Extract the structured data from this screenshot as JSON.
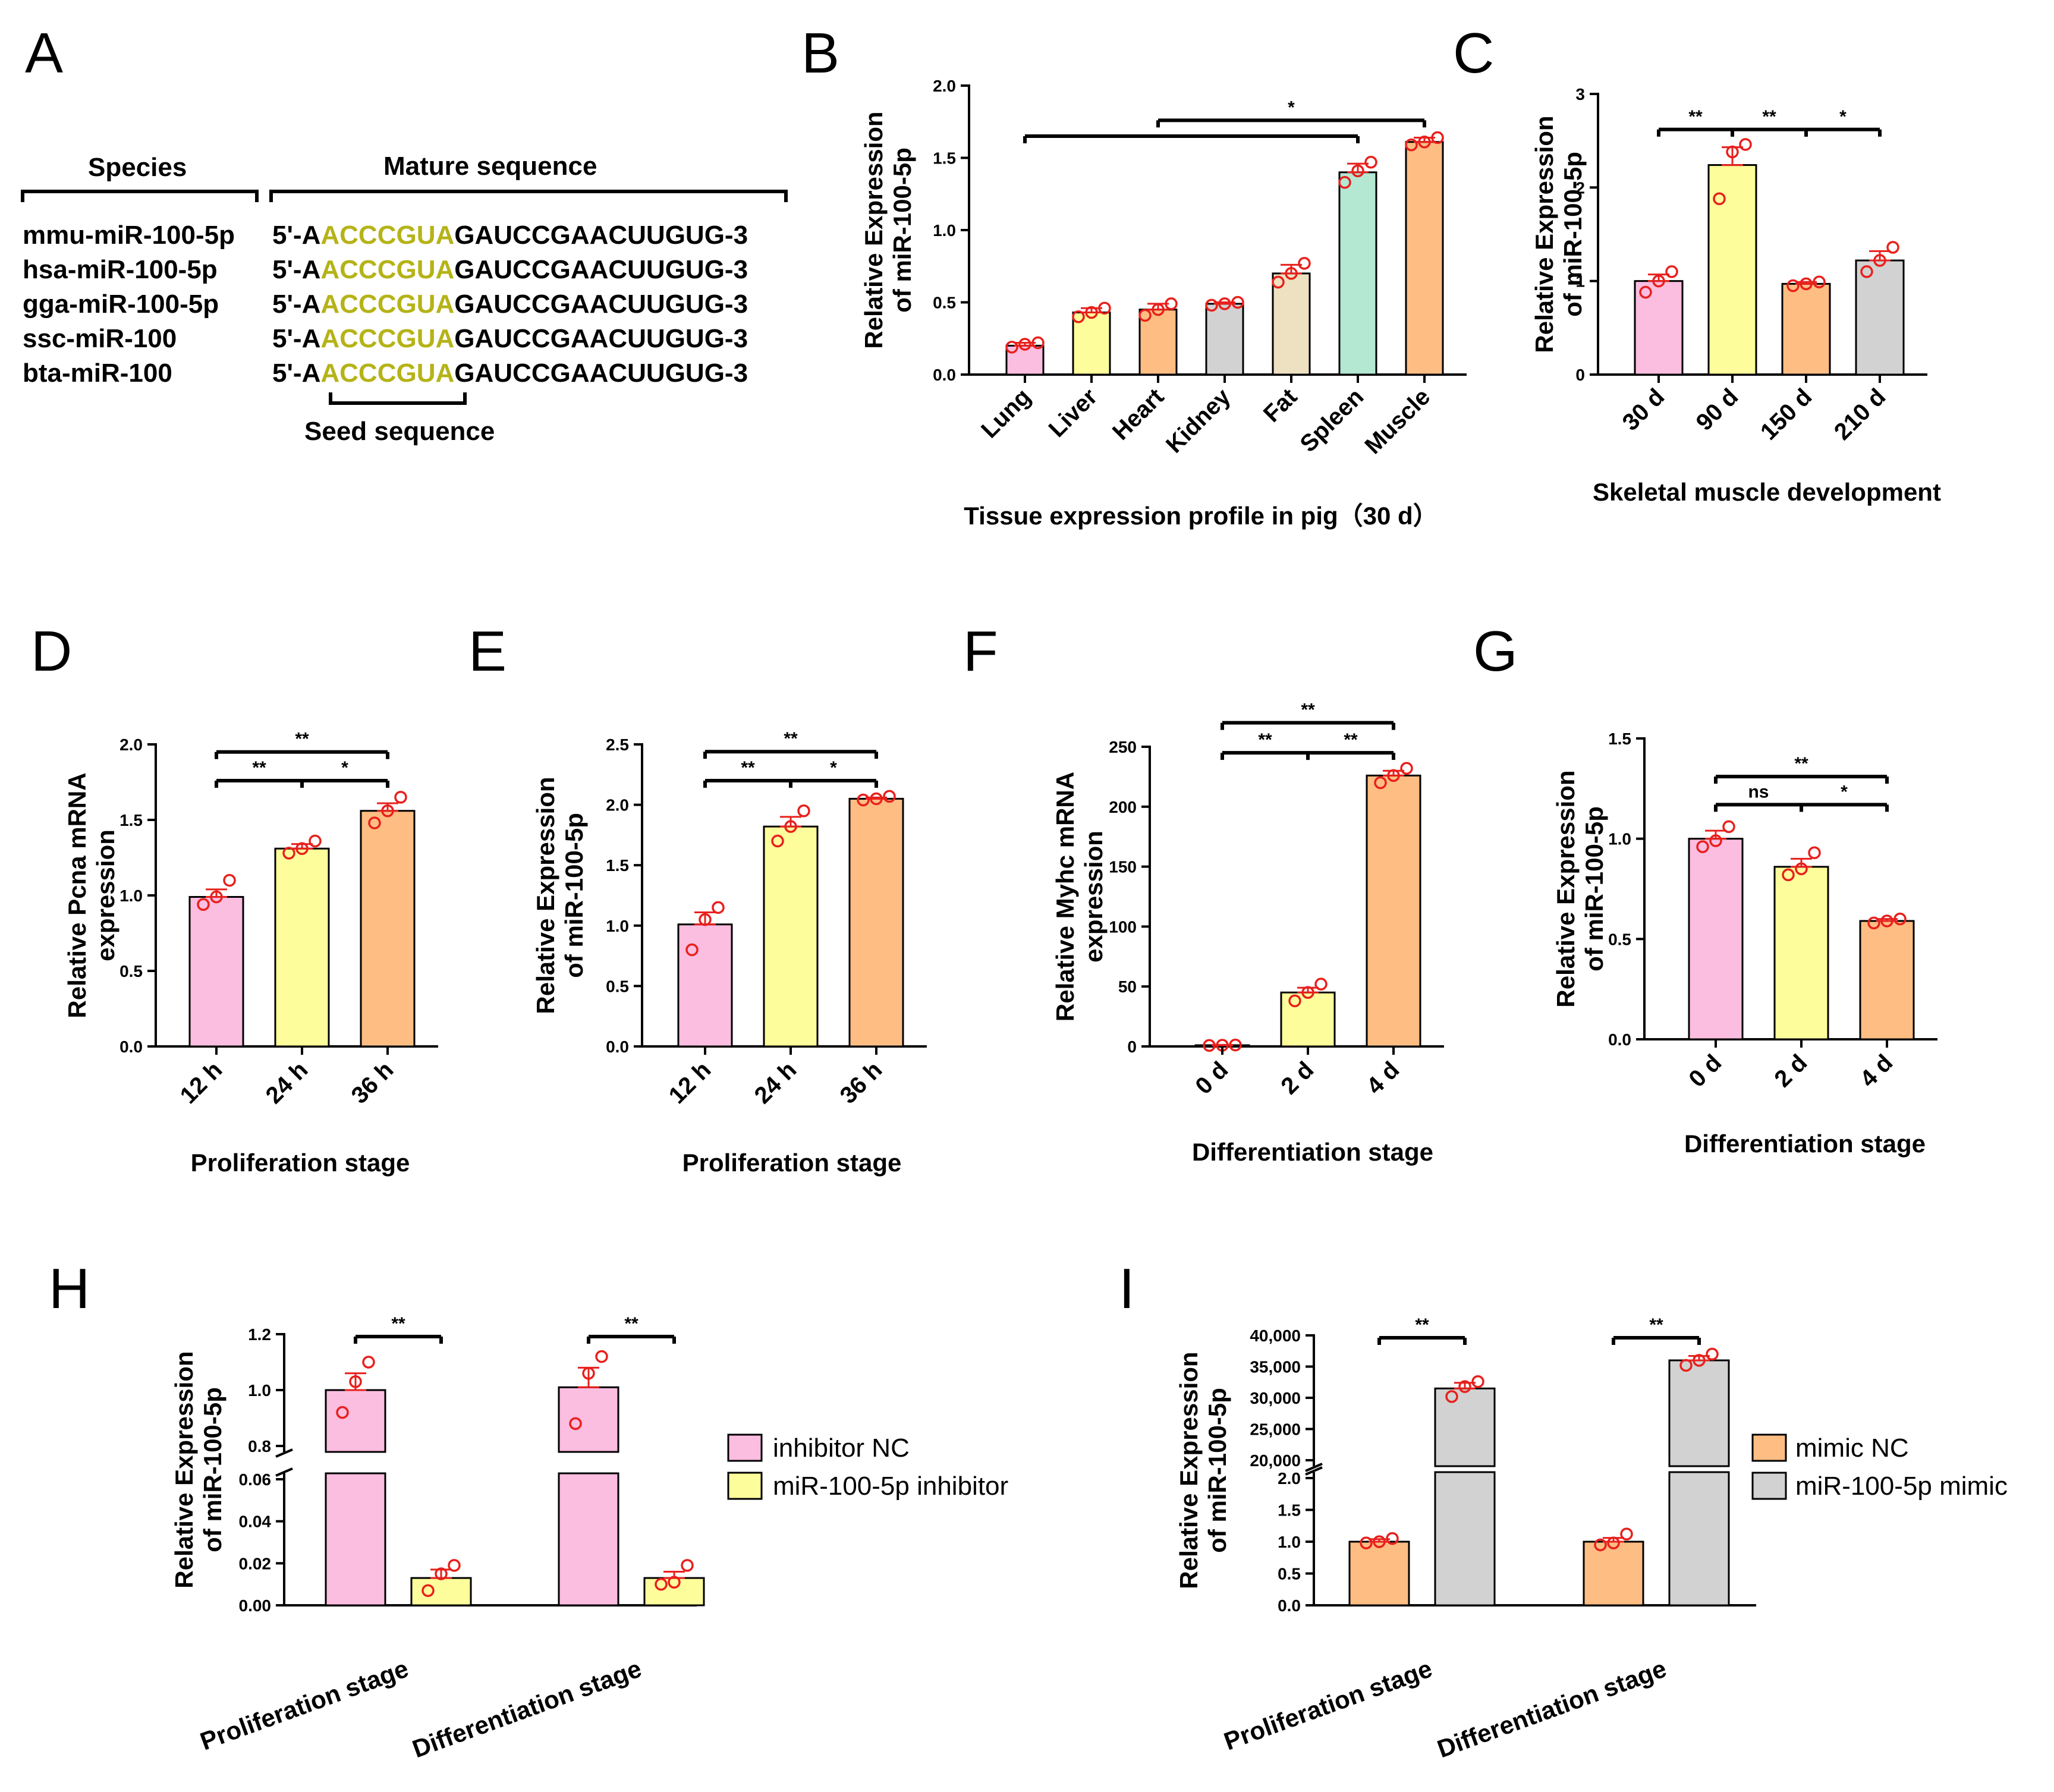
{
  "figure": {
    "background": "#ffffff"
  },
  "colors": {
    "pink": "#fbbde0",
    "yellow": "#fefd9b",
    "orange": "#fdbd83",
    "gray": "#d2d2d2",
    "tan": "#ede1c1",
    "mint": "#b4e8d3",
    "dot": "#e8201c",
    "errbar": "#e8201c",
    "seed": "#b5b317"
  },
  "panel_a": {
    "letter": "A",
    "species_header": "Species",
    "sequence_header": "Mature sequence",
    "rows": [
      {
        "species": "mmu-miR-100-5p",
        "prefix": "5'-A",
        "seed": "ACCCGUA",
        "suffix": "GAUCCGAACUUGUG-3"
      },
      {
        "species": "hsa-miR-100-5p",
        "prefix": "5'-A",
        "seed": "ACCCGUA",
        "suffix": "GAUCCGAACUUGUG-3"
      },
      {
        "species": "gga-miR-100-5p",
        "prefix": "5'-A",
        "seed": "ACCCGUA",
        "suffix": "GAUCCGAACUUGUG-3"
      },
      {
        "species": "ssc-miR-100",
        "prefix": "5'-A",
        "seed": "ACCCGUA",
        "suffix": "GAUCCGAACUUGUG-3"
      },
      {
        "species": "bta-miR-100",
        "prefix": "5'-A",
        "seed": "ACCCGUA",
        "suffix": "GAUCCGAACUUGUG-3"
      }
    ],
    "seed_label": "Seed sequence"
  },
  "legend_h": [
    "inhibitor NC",
    "miR-100-5p inhibitor"
  ],
  "legend_i": [
    "mimic NC",
    "miR-100-5p mimic"
  ],
  "chart_data": [
    {
      "id": "B",
      "type": "bar",
      "letter": "B",
      "ylabel": [
        "Relative Expression",
        "of miR-100-5p"
      ],
      "xlabel": "Tissue expression profile in pig（30 d）",
      "ylim": [
        0,
        2.0
      ],
      "yticks": [
        "0.0",
        "0.5",
        "1.0",
        "1.5",
        "2.0"
      ],
      "ytick_values": [
        0,
        0.5,
        1.0,
        1.5,
        2.0
      ],
      "categories": [
        "Lung",
        "Liver",
        "Heart",
        "Kidney",
        "Fat",
        "Spleen",
        "Muscle"
      ],
      "values": [
        0.2,
        0.43,
        0.45,
        0.49,
        0.7,
        1.4,
        1.61
      ],
      "errors": [
        0.02,
        0.03,
        0.04,
        0.01,
        0.06,
        0.06,
        0.03
      ],
      "points": [
        [
          0.19,
          0.21,
          0.22
        ],
        [
          0.4,
          0.43,
          0.46
        ],
        [
          0.41,
          0.45,
          0.49
        ],
        [
          0.48,
          0.49,
          0.5
        ],
        [
          0.64,
          0.7,
          0.77
        ],
        [
          1.33,
          1.41,
          1.47
        ],
        [
          1.59,
          1.61,
          1.64
        ]
      ],
      "bar_colors": [
        "pink",
        "yellow",
        "orange",
        "gray",
        "tan",
        "mint",
        "orange"
      ],
      "rotate_labels": true,
      "significance": [
        {
          "from": 0,
          "to": 5,
          "label": "",
          "y": 1.65
        },
        {
          "from": 2,
          "to": 6,
          "label": "*",
          "y": 1.76
        }
      ]
    },
    {
      "id": "C",
      "type": "bar",
      "letter": "C",
      "ylabel": [
        "Relative Expression",
        "of miR-100-5p"
      ],
      "xlabel": "Skeletal muscle development",
      "ylim": [
        0,
        3
      ],
      "yticks": [
        "0",
        "1",
        "2",
        "3"
      ],
      "ytick_values": [
        0,
        1,
        2,
        3
      ],
      "categories": [
        "30 d",
        "90 d",
        "150 d",
        "210 d"
      ],
      "values": [
        1.0,
        2.24,
        0.97,
        1.22
      ],
      "errors": [
        0.07,
        0.19,
        0.02,
        0.1
      ],
      "points": [
        [
          0.88,
          1.0,
          1.1
        ],
        [
          1.88,
          2.38,
          2.46
        ],
        [
          0.95,
          0.97,
          0.99
        ],
        [
          1.1,
          1.22,
          1.36
        ]
      ],
      "bar_colors": [
        "pink",
        "yellow",
        "orange",
        "gray"
      ],
      "rotate_labels": true,
      "significance": [
        {
          "from": 0,
          "to": 1,
          "label": "**",
          "y": 2.62
        },
        {
          "from": 1,
          "to": 2,
          "label": "**",
          "y": 2.62
        },
        {
          "from": 2,
          "to": 3,
          "label": "*",
          "y": 2.62
        }
      ]
    },
    {
      "id": "D",
      "type": "bar",
      "letter": "D",
      "ylabel": [
        "Relative Pcna mRNA",
        "expression"
      ],
      "xlabel": "Proliferation stage",
      "ylim": [
        0,
        2.0
      ],
      "yticks": [
        "0.0",
        "0.5",
        "1.0",
        "1.5",
        "2.0"
      ],
      "ytick_values": [
        0,
        0.5,
        1.0,
        1.5,
        2.0
      ],
      "categories": [
        "12 h",
        "24 h",
        "36 h"
      ],
      "values": [
        0.99,
        1.31,
        1.56
      ],
      "errors": [
        0.05,
        0.03,
        0.05
      ],
      "points": [
        [
          0.94,
          0.99,
          1.1
        ],
        [
          1.28,
          1.31,
          1.36
        ],
        [
          1.48,
          1.56,
          1.65
        ]
      ],
      "bar_colors": [
        "pink",
        "yellow",
        "orange"
      ],
      "rotate_labels": true,
      "significance": [
        {
          "from": 0,
          "to": 1,
          "label": "**",
          "y": 1.76
        },
        {
          "from": 1,
          "to": 2,
          "label": "*",
          "y": 1.76
        },
        {
          "from": 0,
          "to": 2,
          "label": "**",
          "y": 1.95
        }
      ]
    },
    {
      "id": "E",
      "type": "bar",
      "letter": "E",
      "ylabel": [
        "Relative Expression",
        "of miR-100-5p"
      ],
      "xlabel": "Proliferation stage",
      "ylim": [
        0,
        2.5
      ],
      "yticks": [
        "0.0",
        "0.5",
        "1.0",
        "1.5",
        "2.0",
        "2.5"
      ],
      "ytick_values": [
        0,
        0.5,
        1.0,
        1.5,
        2.0,
        2.5
      ],
      "categories": [
        "12 h",
        "24 h",
        "36 h"
      ],
      "values": [
        1.01,
        1.82,
        2.05
      ],
      "errors": [
        0.1,
        0.08,
        0.01
      ],
      "points": [
        [
          0.8,
          1.05,
          1.15
        ],
        [
          1.7,
          1.82,
          1.95
        ],
        [
          2.04,
          2.05,
          2.07
        ]
      ],
      "bar_colors": [
        "pink",
        "yellow",
        "orange"
      ],
      "rotate_labels": true,
      "significance": [
        {
          "from": 0,
          "to": 1,
          "label": "**",
          "y": 2.2
        },
        {
          "from": 1,
          "to": 2,
          "label": "*",
          "y": 2.2
        },
        {
          "from": 0,
          "to": 2,
          "label": "**",
          "y": 2.44
        }
      ]
    },
    {
      "id": "F",
      "type": "bar",
      "letter": "F",
      "ylabel": [
        "Relative Myhc mRNA",
        "expression"
      ],
      "xlabel": "Differentiation stage",
      "ylim": [
        0,
        250
      ],
      "yticks": [
        "0",
        "50",
        "100",
        "150",
        "200",
        "250"
      ],
      "ytick_values": [
        0,
        50,
        100,
        150,
        200,
        250
      ],
      "categories": [
        "0 d",
        "2 d",
        "4 d"
      ],
      "values": [
        1,
        45,
        226
      ],
      "errors": [
        0.3,
        4,
        4
      ],
      "points": [
        [
          0.8,
          1.0,
          1.2
        ],
        [
          38,
          45,
          52
        ],
        [
          220,
          226,
          232
        ]
      ],
      "bar_colors": [
        "pink",
        "yellow",
        "orange"
      ],
      "rotate_labels": true,
      "significance": [
        {
          "from": 0,
          "to": 1,
          "label": "**",
          "y": 245
        },
        {
          "from": 1,
          "to": 2,
          "label": "**",
          "y": 245
        },
        {
          "from": 0,
          "to": 2,
          "label": "**",
          "y": 270
        }
      ]
    },
    {
      "id": "G",
      "type": "bar",
      "letter": "G",
      "ylabel": [
        "Relative Expression",
        "of miR-100-5p"
      ],
      "xlabel": "Differentiation stage",
      "ylim": [
        0,
        1.5
      ],
      "yticks": [
        "0.0",
        "0.5",
        "1.0",
        "1.5"
      ],
      "ytick_values": [
        0,
        0.5,
        1.0,
        1.5
      ],
      "categories": [
        "0 d",
        "2 d",
        "4 d"
      ],
      "values": [
        1.0,
        0.86,
        0.59
      ],
      "errors": [
        0.04,
        0.04,
        0.01
      ],
      "points": [
        [
          0.96,
          0.99,
          1.06
        ],
        [
          0.82,
          0.85,
          0.93
        ],
        [
          0.58,
          0.59,
          0.6
        ]
      ],
      "bar_colors": [
        "pink",
        "yellow",
        "orange"
      ],
      "rotate_labels": true,
      "significance": [
        {
          "from": 0,
          "to": 1,
          "label": "ns",
          "y": 1.17
        },
        {
          "from": 1,
          "to": 2,
          "label": "*",
          "y": 1.17
        },
        {
          "from": 0,
          "to": 2,
          "label": "**",
          "y": 1.31
        }
      ]
    },
    {
      "id": "H",
      "type": "bar",
      "letter": "H",
      "ylabel": [
        "Relative Expression",
        "of miR-100-5p"
      ],
      "xlabel": "",
      "broken_axis": true,
      "lower_ylim": [
        0,
        0.06
      ],
      "lower_yticks": [
        "0.00",
        "0.02",
        "0.04",
        "0.06"
      ],
      "lower_ytick_values": [
        0,
        0.02,
        0.04,
        0.06
      ],
      "upper_ylim": [
        0.8,
        1.2
      ],
      "upper_yticks": [
        "0.8",
        "1.0",
        "1.2"
      ],
      "upper_ytick_values": [
        0.8,
        1.0,
        1.2
      ],
      "categories": [
        "Proliferation stage",
        "Differentiation stage"
      ],
      "series": [
        {
          "name": "inhibitor NC",
          "color": "pink",
          "values": [
            1.0,
            1.01
          ],
          "errors": [
            0.06,
            0.07
          ],
          "points": [
            [
              0.92,
              1.03,
              1.1
            ],
            [
              0.88,
              1.06,
              1.12
            ]
          ]
        },
        {
          "name": "miR-100-5p inhibitor",
          "color": "yellow",
          "values": [
            0.013,
            0.013
          ],
          "errors": [
            0.004,
            0.003
          ],
          "points": [
            [
              0.007,
              0.015,
              0.019
            ],
            [
              0.01,
              0.011,
              0.019
            ]
          ]
        }
      ],
      "significance": [
        {
          "group": 0,
          "label": "**"
        },
        {
          "group": 1,
          "label": "**"
        }
      ]
    },
    {
      "id": "I",
      "type": "bar",
      "letter": "I",
      "ylabel": [
        "Relative Expression",
        "of miR-100-5p"
      ],
      "xlabel": "",
      "broken_axis": true,
      "lower_ylim": [
        0,
        2.0
      ],
      "lower_yticks": [
        "0.0",
        "0.5",
        "1.0",
        "1.5",
        "2.0"
      ],
      "lower_ytick_values": [
        0,
        0.5,
        1.0,
        1.5,
        2.0
      ],
      "upper_ylim": [
        20000,
        40000
      ],
      "upper_yticks": [
        "20,000",
        "25,000",
        "30,000",
        "35,000",
        "40,000"
      ],
      "upper_ytick_values": [
        20000,
        25000,
        30000,
        35000,
        40000
      ],
      "categories": [
        "Proliferation stage",
        "Differentiation stage"
      ],
      "series": [
        {
          "name": "mimic NC",
          "color": "orange",
          "values": [
            1.0,
            1.0
          ],
          "errors": [
            0.04,
            0.06
          ],
          "points": [
            [
              0.98,
              1.0,
              1.05
            ],
            [
              0.95,
              0.98,
              1.12
            ]
          ]
        },
        {
          "name": "miR-100-5p mimic",
          "color": "gray",
          "values": [
            31500,
            36000
          ],
          "errors": [
            900,
            700
          ],
          "points": [
            [
              30200,
              31800,
              32600
            ],
            [
              35200,
              36000,
              37000
            ]
          ]
        }
      ],
      "significance": [
        {
          "group": 0,
          "label": "**"
        },
        {
          "group": 1,
          "label": "**"
        }
      ]
    }
  ]
}
